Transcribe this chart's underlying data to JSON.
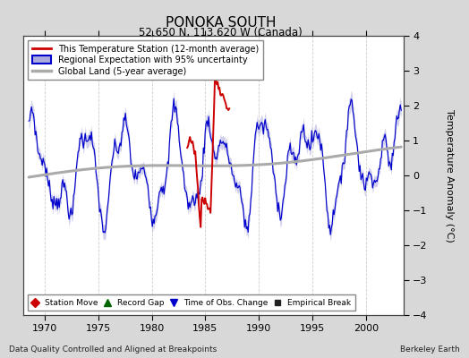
{
  "title": "PONOKA SOUTH",
  "subtitle": "52.650 N, 113.620 W (Canada)",
  "ylabel": "Temperature Anomaly (°C)",
  "xlim": [
    1968.0,
    2003.5
  ],
  "ylim": [
    -4,
    4
  ],
  "yticks": [
    -4,
    -3,
    -2,
    -1,
    0,
    1,
    2,
    3,
    4
  ],
  "xticks": [
    1970,
    1975,
    1980,
    1985,
    1990,
    1995,
    2000
  ],
  "bg_color": "#d8d8d8",
  "plot_bg_color": "#ffffff",
  "grid_color": "#cccccc",
  "regional_line_color": "#0000cc",
  "regional_fill_color": "#aaaadd",
  "station_line_color": "#cc0000",
  "global_land_color": "#aaaaaa",
  "footer_left": "Data Quality Controlled and Aligned at Breakpoints",
  "footer_right": "Berkeley Earth",
  "legend_items": [
    "This Temperature Station (12-month average)",
    "Regional Expectation with 95% uncertainty",
    "Global Land (5-year average)"
  ]
}
